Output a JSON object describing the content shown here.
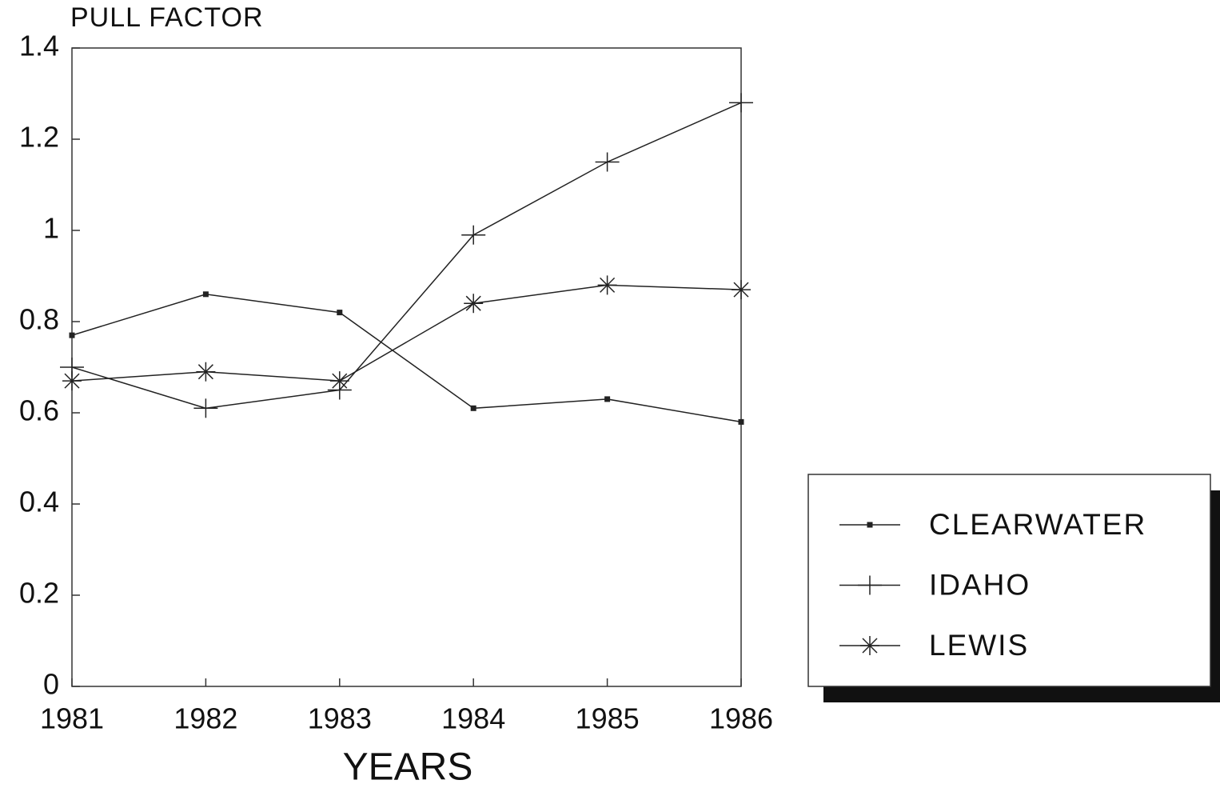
{
  "chart_data": {
    "type": "line",
    "title": "PULL FACTOR",
    "x_label": "YEARS",
    "x": [
      1981,
      1982,
      1983,
      1984,
      1985,
      1986
    ],
    "xlim": [
      1981,
      1986
    ],
    "xticks": [
      1981,
      1982,
      1983,
      1984,
      1985,
      1986
    ],
    "ylim": [
      0,
      1.4
    ],
    "yticks": [
      0,
      0.2,
      0.4,
      0.6,
      0.8,
      1,
      1.2,
      1.4
    ],
    "legend": "right",
    "series": [
      {
        "name": "CLEARWATER",
        "color": "#222222",
        "marker": "square",
        "values": [
          0.77,
          0.86,
          0.82,
          0.61,
          0.63,
          0.58
        ]
      },
      {
        "name": "IDAHO",
        "color": "#222222",
        "marker": "plus",
        "values": [
          0.7,
          0.61,
          0.65,
          0.99,
          1.15,
          1.28
        ]
      },
      {
        "name": "LEWIS",
        "color": "#222222",
        "marker": "asterisk",
        "values": [
          0.67,
          0.69,
          0.67,
          0.84,
          0.88,
          0.87
        ]
      }
    ]
  }
}
